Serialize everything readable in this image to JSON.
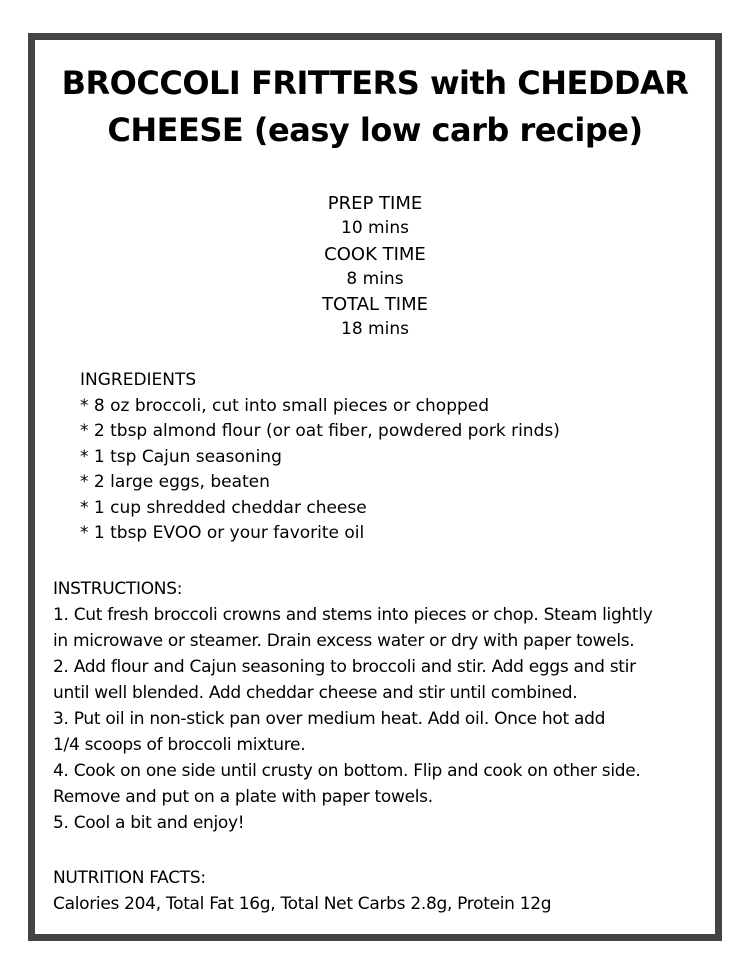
{
  "title_lines": [
    "BROCCOLI FRITTERS with CHEDDAR",
    "CHEESE (easy low carb recipe)"
  ],
  "times": {
    "prep_label": "PREP TIME",
    "prep_value": "10 mins",
    "cook_label": "COOK TIME",
    "cook_value": "8 mins",
    "total_label": "TOTAL TIME",
    "total_value": "18 mins"
  },
  "ingredients": {
    "heading": "INGREDIENTS",
    "items": [
      "* 8 oz broccoli, cut into small pieces or chopped",
      "* 2 tbsp almond flour (or oat fiber, powdered pork rinds)",
      "* 1 tsp Cajun seasoning",
      "* 2 large eggs, beaten",
      "* 1 cup shredded cheddar cheese",
      "* 1 tbsp EVOO or your favorite oil"
    ]
  },
  "instructions": {
    "heading": "INSTRUCTIONS:",
    "lines": [
      "1. Cut fresh broccoli crowns and stems into pieces or chop. Steam lightly",
      "in microwave or steamer. Drain excess water or dry with paper towels.",
      "2. Add flour and Cajun seasoning to broccoli and stir. Add eggs and stir",
      "until well blended. Add cheddar cheese and stir until combined.",
      "3. Put oil in non-stick pan over medium heat. Add oil. Once hot add",
      "1/4 scoops of broccoli mixture.",
      "4. Cook on one side until crusty on bottom. Flip and cook on other side.",
      "Remove and put on a plate with paper towels.",
      "5. Cool a bit and enjoy!"
    ]
  },
  "nutrition": {
    "heading": "NUTRITION FACTS:",
    "text": "Calories 204, Total Fat 16g, Total Net Carbs 2.8g, Protein 12g"
  },
  "colors": {
    "border": "#444444",
    "text": "#000000",
    "background": "#ffffff"
  }
}
